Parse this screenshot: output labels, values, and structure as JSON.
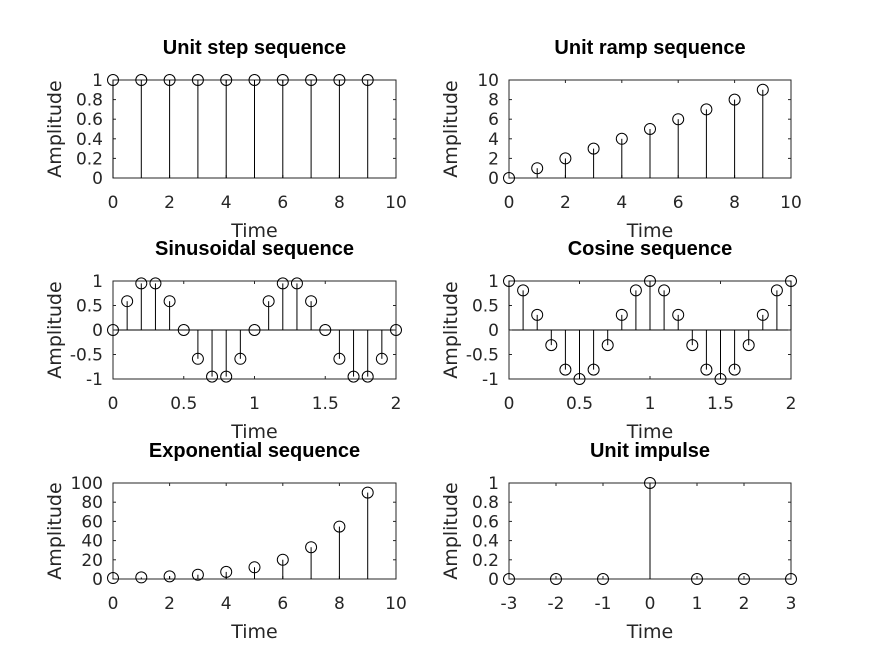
{
  "chart_data": [
    {
      "type": "stem",
      "title": "Unit step sequence",
      "xlabel": "Time",
      "ylabel": "Amplitude",
      "xlim": [
        0,
        10
      ],
      "ylim": [
        0,
        1
      ],
      "xticks": [
        "0",
        "2",
        "4",
        "6",
        "8",
        "10"
      ],
      "yticks": [
        "0",
        "0.2",
        "0.4",
        "0.6",
        "0.8",
        "1"
      ],
      "x": [
        0,
        1,
        2,
        3,
        4,
        5,
        6,
        7,
        8,
        9
      ],
      "y": [
        1,
        1,
        1,
        1,
        1,
        1,
        1,
        1,
        1,
        1
      ]
    },
    {
      "type": "stem",
      "title": "Unit ramp sequence",
      "xlabel": "Time",
      "ylabel": "Amplitude",
      "xlim": [
        0,
        10
      ],
      "ylim": [
        0,
        10
      ],
      "xticks": [
        "0",
        "2",
        "4",
        "6",
        "8",
        "10"
      ],
      "yticks": [
        "0",
        "2",
        "4",
        "6",
        "8",
        "10"
      ],
      "x": [
        0,
        1,
        2,
        3,
        4,
        5,
        6,
        7,
        8,
        9
      ],
      "y": [
        0,
        1,
        2,
        3,
        4,
        5,
        6,
        7,
        8,
        9
      ]
    },
    {
      "type": "stem",
      "title": "Sinusoidal sequence",
      "xlabel": "Time",
      "ylabel": "Amplitude",
      "xlim": [
        0,
        2
      ],
      "ylim": [
        -1,
        1
      ],
      "xticks": [
        "0",
        "0.5",
        "1",
        "1.5",
        "2"
      ],
      "yticks": [
        "-1",
        "-0.5",
        "0",
        "0.5",
        "1"
      ],
      "x": [
        0,
        0.1,
        0.2,
        0.3,
        0.4,
        0.5,
        0.6,
        0.7,
        0.8,
        0.9,
        1.0,
        1.1,
        1.2,
        1.3,
        1.4,
        1.5,
        1.6,
        1.7,
        1.8,
        1.9,
        2.0
      ],
      "y": [
        0,
        0.588,
        0.951,
        0.951,
        0.588,
        0,
        -0.588,
        -0.951,
        -0.951,
        -0.588,
        0,
        0.588,
        0.951,
        0.951,
        0.588,
        0,
        -0.588,
        -0.951,
        -0.951,
        -0.588,
        0
      ]
    },
    {
      "type": "stem",
      "title": "Cosine sequence",
      "xlabel": "Time",
      "ylabel": "Amplitude",
      "xlim": [
        0,
        2
      ],
      "ylim": [
        -1,
        1
      ],
      "xticks": [
        "0",
        "0.5",
        "1",
        "1.5",
        "2"
      ],
      "yticks": [
        "-1",
        "-0.5",
        "0",
        "0.5",
        "1"
      ],
      "x": [
        0,
        0.1,
        0.2,
        0.3,
        0.4,
        0.5,
        0.6,
        0.7,
        0.8,
        0.9,
        1.0,
        1.1,
        1.2,
        1.3,
        1.4,
        1.5,
        1.6,
        1.7,
        1.8,
        1.9,
        2.0
      ],
      "y": [
        1,
        0.809,
        0.309,
        -0.309,
        -0.809,
        -1,
        -0.809,
        -0.309,
        0.309,
        0.809,
        1,
        0.809,
        0.309,
        -0.309,
        -0.809,
        -1,
        -0.809,
        -0.309,
        0.309,
        0.809,
        1
      ]
    },
    {
      "type": "stem",
      "title": "Exponential sequence",
      "xlabel": "Time",
      "ylabel": "Amplitude",
      "xlim": [
        0,
        10
      ],
      "ylim": [
        0,
        100
      ],
      "xticks": [
        "0",
        "2",
        "4",
        "6",
        "8",
        "10"
      ],
      "yticks": [
        "0",
        "20",
        "40",
        "60",
        "80",
        "100"
      ],
      "x": [
        0,
        1,
        2,
        3,
        4,
        5,
        6,
        7,
        8,
        9
      ],
      "y": [
        1,
        1.65,
        2.72,
        4.48,
        7.39,
        12.18,
        20.09,
        33.12,
        54.6,
        90.02
      ]
    },
    {
      "type": "stem",
      "title": "Unit impulse",
      "xlabel": "Time",
      "ylabel": "Amplitude",
      "xlim": [
        -3,
        3
      ],
      "ylim": [
        0,
        1
      ],
      "xticks": [
        "-3",
        "-2",
        "-1",
        "0",
        "1",
        "2",
        "3"
      ],
      "yticks": [
        "0",
        "0.2",
        "0.4",
        "0.6",
        "0.8",
        "1"
      ],
      "x": [
        -3,
        -2,
        -1,
        0,
        1,
        2,
        3
      ],
      "y": [
        0,
        0,
        0,
        1,
        0,
        0,
        0
      ]
    }
  ]
}
